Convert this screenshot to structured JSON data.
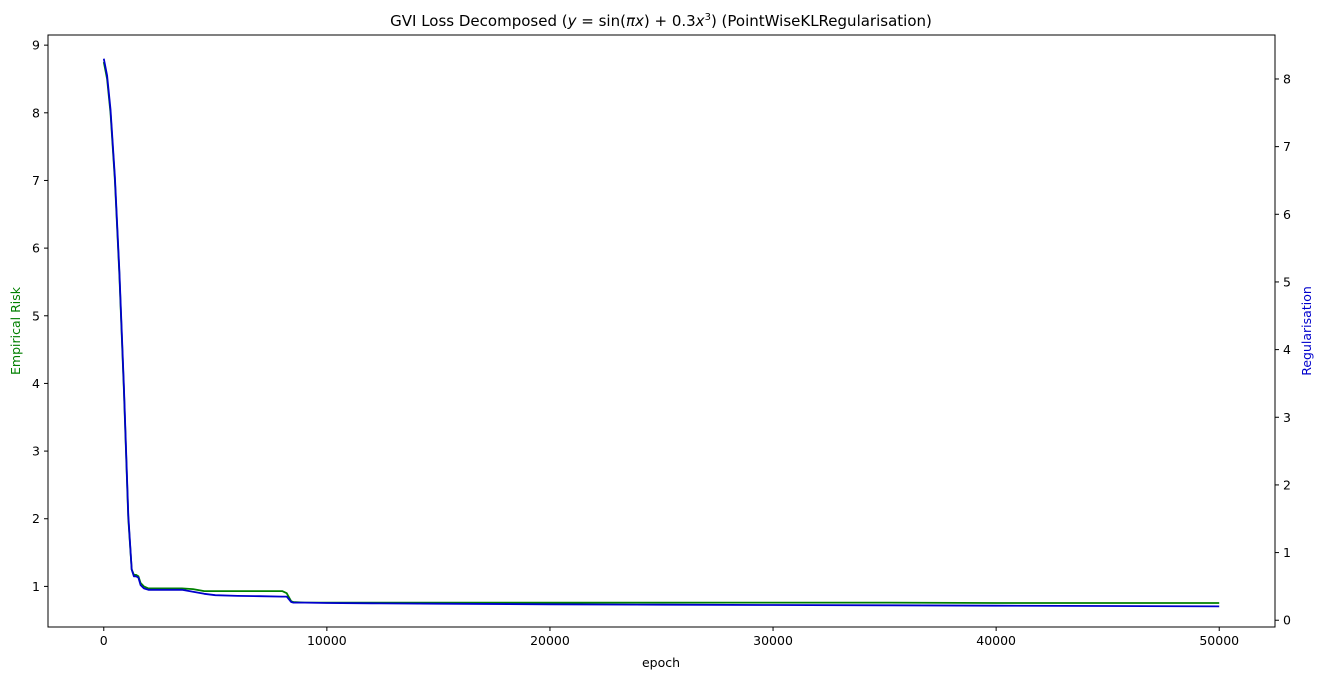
{
  "chart_data": {
    "type": "line",
    "title_prefix": "GVI Loss Decomposed (",
    "title_y": "y",
    "title_eq": " = sin(",
    "title_pi": "π",
    "title_x1": "x",
    "title_plus": ") + 0.3",
    "title_x2": "x",
    "title_exp": "3",
    "title_suffix": ") (PointWiseKLRegularisation)",
    "xlabel": "epoch",
    "ylabel_left": "Empirical Risk",
    "ylabel_right": "Regularisation",
    "xlim": [
      -2500,
      52500
    ],
    "ylim_left": [
      0.4,
      9.15
    ],
    "ylim_right": [
      -0.1,
      8.65
    ],
    "x_ticks": [
      0,
      10000,
      20000,
      30000,
      40000,
      50000
    ],
    "y_ticks_left": [
      1,
      2,
      3,
      4,
      5,
      6,
      7,
      8,
      9
    ],
    "y_ticks_right": [
      0,
      1,
      2,
      3,
      4,
      5,
      6,
      7,
      8
    ],
    "grid": false,
    "colors": {
      "left": "#008000",
      "right": "#0000cc"
    },
    "series": [
      {
        "axis": "left",
        "color": "#008000",
        "x": [
          0,
          150,
          300,
          500,
          700,
          900,
          1100,
          1250,
          1350,
          1450,
          1550,
          1650,
          1800,
          2000,
          2500,
          3000,
          3500,
          4000,
          4500,
          5000,
          6000,
          7000,
          8000,
          8200,
          8400,
          8500,
          9000,
          10000,
          12000,
          15000,
          20000,
          25000,
          30000,
          35000,
          40000,
          45000,
          50000
        ],
        "y": [
          8.75,
          8.5,
          8.0,
          7.0,
          5.6,
          3.9,
          2.0,
          1.25,
          1.17,
          1.17,
          1.15,
          1.05,
          1.0,
          0.97,
          0.97,
          0.97,
          0.97,
          0.96,
          0.93,
          0.93,
          0.93,
          0.93,
          0.93,
          0.9,
          0.78,
          0.77,
          0.76,
          0.76,
          0.76,
          0.76,
          0.76,
          0.76,
          0.76,
          0.76,
          0.755,
          0.755,
          0.755
        ]
      },
      {
        "axis": "right",
        "color": "#0000cc",
        "x": [
          0,
          150,
          300,
          500,
          700,
          900,
          1100,
          1250,
          1350,
          1450,
          1550,
          1650,
          1800,
          2000,
          2500,
          3000,
          3500,
          4000,
          4500,
          5000,
          6000,
          7000,
          8000,
          8200,
          8400,
          8500,
          9000,
          10000,
          12000,
          15000,
          20000,
          25000,
          30000,
          35000,
          40000,
          45000,
          50000
        ],
        "y": [
          8.3,
          8.05,
          7.55,
          6.55,
          5.15,
          3.45,
          1.55,
          0.75,
          0.65,
          0.65,
          0.63,
          0.52,
          0.47,
          0.45,
          0.45,
          0.45,
          0.45,
          0.42,
          0.39,
          0.37,
          0.36,
          0.355,
          0.35,
          0.35,
          0.27,
          0.26,
          0.26,
          0.255,
          0.25,
          0.245,
          0.235,
          0.23,
          0.225,
          0.22,
          0.215,
          0.21,
          0.205
        ]
      }
    ]
  }
}
